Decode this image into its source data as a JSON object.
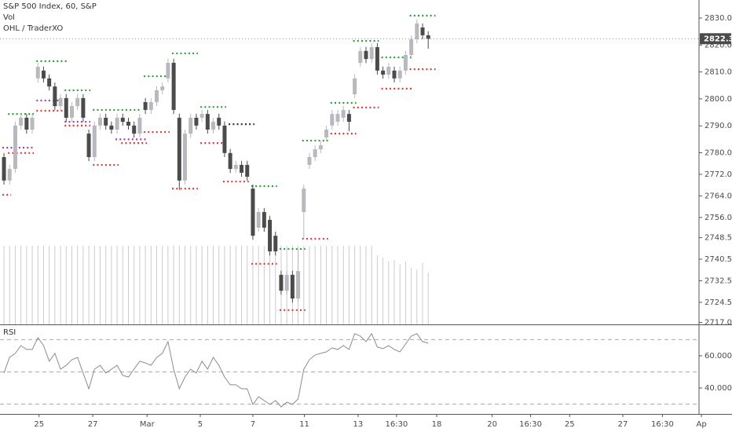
{
  "chart_data": {
    "type": "candlestick",
    "title": "S&P 500 Index, 60, S&P",
    "volume_label": "Vol",
    "indicator_label": "OHL / TraderXO",
    "last_price": 2822.33,
    "up_color": "#b7b9bf",
    "down_color": "#4b4b4b",
    "volume_color": "#c9cbd0",
    "xlim": [
      -0.7,
      128.7
    ],
    "xticks": [
      {
        "value": 6.2,
        "label": "25"
      },
      {
        "value": 15.7,
        "label": "27"
      },
      {
        "value": 25.3,
        "label": "Mar"
      },
      {
        "value": 34.7,
        "label": "5"
      },
      {
        "value": 44.0,
        "label": "7"
      },
      {
        "value": 53.1,
        "label": "11"
      },
      {
        "value": 62.6,
        "label": "13"
      },
      {
        "value": 69.4,
        "label": "16:30"
      },
      {
        "value": 76.5,
        "label": "18"
      },
      {
        "value": 86.3,
        "label": "20"
      },
      {
        "value": 93.1,
        "label": "16:30"
      },
      {
        "value": 100.0,
        "label": "25"
      },
      {
        "value": 109.4,
        "label": "27"
      },
      {
        "value": 116.4,
        "label": "16:30"
      },
      {
        "value": 123.3,
        "label": "Ap"
      }
    ],
    "ylim": [
      2716.3,
      2836.7
    ],
    "yticks": [
      {
        "value": 2717,
        "label": "2717.00"
      },
      {
        "value": 2724.5,
        "label": "2724.50"
      },
      {
        "value": 2732.5,
        "label": "2732.50"
      },
      {
        "value": 2740.5,
        "label": "2740.50"
      },
      {
        "value": 2748.5,
        "label": "2748.50"
      },
      {
        "value": 2756,
        "label": "2756.00"
      },
      {
        "value": 2764,
        "label": "2764.00"
      },
      {
        "value": 2772,
        "label": "2772.00"
      },
      {
        "value": 2780,
        "label": "2780.00"
      },
      {
        "value": 2790,
        "label": "2790.00"
      },
      {
        "value": 2800,
        "label": "2800.00"
      },
      {
        "value": 2810,
        "label": "2810.00"
      },
      {
        "value": 2820,
        "label": "2820.00"
      },
      {
        "value": 2830,
        "label": "2830.00"
      }
    ],
    "open": [
      2778.4,
      2769.7,
      2774.0,
      2790.1,
      2793.0,
      2788.6,
      2807.6,
      2810.5,
      2807.6,
      2804.6,
      2797.3,
      2800.3,
      2793.0,
      2797.3,
      2800.3,
      2787.1,
      2778.4,
      2790.1,
      2793.0,
      2790.1,
      2788.6,
      2793.0,
      2791.5,
      2790.1,
      2787.1,
      2798.8,
      2795.9,
      2798.8,
      2803.2,
      2807.6,
      2813.4,
      2793.0,
      2769.7,
      2787.1,
      2793.0,
      2793.0,
      2794.4,
      2788.6,
      2793.0,
      2790.1,
      2779.9,
      2774.0,
      2775.5,
      2775.5,
      2766.7,
      2752.2,
      2758.0,
      2755.1,
      2749.2,
      2734.7,
      2728.8,
      2734.7,
      2725.9,
      2758.0,
      2775.5,
      2778.4,
      2781.3,
      2785.7,
      2790.1,
      2791.5,
      2793.0,
      2794.4,
      2801.7,
      2813.4,
      2817.8,
      2814.8,
      2819.2,
      2810.5,
      2809.0,
      2810.5,
      2807.6,
      2810.5,
      2816.3,
      2822.1,
      2826.5,
      2823.6
    ],
    "high": [
      2779.9,
      2775.5,
      2791.6,
      2794.5,
      2794.5,
      2794.5,
      2813.4,
      2812.0,
      2809.1,
      2806.1,
      2801.8,
      2801.8,
      2798.8,
      2801.8,
      2801.8,
      2788.6,
      2791.6,
      2794.5,
      2794.5,
      2791.6,
      2794.5,
      2794.5,
      2793.0,
      2791.6,
      2794.5,
      2800.3,
      2800.3,
      2804.7,
      2806.1,
      2814.9,
      2814.9,
      2794.5,
      2788.6,
      2794.5,
      2794.5,
      2795.9,
      2795.9,
      2793.0,
      2794.5,
      2791.6,
      2781.4,
      2777.0,
      2777.0,
      2777.0,
      2768.2,
      2759.5,
      2759.5,
      2756.6,
      2750.7,
      2736.2,
      2736.2,
      2736.2,
      2744.0,
      2768.2,
      2779.9,
      2782.8,
      2784.3,
      2790.1,
      2795.9,
      2795.9,
      2797.4,
      2795.9,
      2809.1,
      2819.3,
      2819.3,
      2820.7,
      2820.7,
      2812.0,
      2813.4,
      2812.0,
      2812.0,
      2817.8,
      2823.6,
      2829.5,
      2828.0,
      2825.1
    ],
    "low": [
      2768.2,
      2768.2,
      2772.5,
      2788.6,
      2787.1,
      2787.1,
      2806.1,
      2806.1,
      2803.1,
      2795.8,
      2795.8,
      2791.5,
      2791.5,
      2795.8,
      2791.5,
      2776.9,
      2776.9,
      2788.6,
      2788.6,
      2787.1,
      2787.1,
      2790.0,
      2788.6,
      2785.6,
      2785.6,
      2794.4,
      2794.4,
      2797.3,
      2801.7,
      2806.1,
      2794.4,
      2766.2,
      2768.2,
      2785.6,
      2788.6,
      2791.5,
      2787.1,
      2787.1,
      2788.6,
      2778.4,
      2772.5,
      2772.5,
      2771.1,
      2769.6,
      2747.7,
      2750.7,
      2750.7,
      2741.9,
      2741.9,
      2727.3,
      2727.3,
      2724.4,
      2724.4,
      2747.7,
      2774.0,
      2776.9,
      2779.8,
      2784.2,
      2788.6,
      2790.0,
      2791.5,
      2788.0,
      2800.2,
      2811.9,
      2813.3,
      2813.3,
      2809.0,
      2807.5,
      2807.5,
      2806.1,
      2806.1,
      2809.0,
      2814.8,
      2820.6,
      2822.1,
      2818.6
    ],
    "close": [
      2769.7,
      2774.0,
      2790.1,
      2793.0,
      2788.6,
      2793.0,
      2811.9,
      2807.6,
      2804.6,
      2797.3,
      2800.3,
      2793.0,
      2797.3,
      2800.3,
      2793.0,
      2778.4,
      2790.1,
      2793.0,
      2790.1,
      2788.6,
      2793.0,
      2791.5,
      2790.1,
      2787.1,
      2793.0,
      2795.9,
      2798.8,
      2803.2,
      2804.6,
      2813.4,
      2795.9,
      2769.7,
      2787.1,
      2793.0,
      2790.1,
      2794.4,
      2788.6,
      2791.5,
      2790.1,
      2779.9,
      2774.0,
      2775.5,
      2772.6,
      2771.1,
      2749.2,
      2758.0,
      2752.2,
      2743.4,
      2743.4,
      2728.8,
      2734.7,
      2725.9,
      2736.1,
      2766.7,
      2778.4,
      2781.3,
      2782.8,
      2788.6,
      2794.4,
      2794.4,
      2795.9,
      2791.5,
      2807.6,
      2817.8,
      2814.8,
      2819.2,
      2810.5,
      2809.0,
      2811.9,
      2807.6,
      2810.5,
      2816.3,
      2822.1,
      2828.0,
      2823.6,
      2822.3
    ],
    "volume": [
      100,
      100,
      100,
      100,
      100,
      100,
      100,
      100,
      100,
      100,
      100,
      100,
      100,
      100,
      100,
      100,
      100,
      100,
      100,
      100,
      100,
      100,
      100,
      100,
      100,
      100,
      100,
      100,
      100,
      100,
      100,
      100,
      100,
      100,
      100,
      100,
      100,
      100,
      100,
      100,
      100,
      100,
      100,
      100,
      100,
      100,
      100,
      100,
      100,
      100,
      100,
      100,
      100,
      100,
      100,
      100,
      100,
      100,
      100,
      100,
      100,
      100,
      100,
      100,
      100,
      100,
      88,
      85,
      80,
      82,
      76,
      80,
      72,
      70,
      78,
      66
    ],
    "levels": [
      {
        "color": "#2f9e3a",
        "segments": [
          [
            1,
            5,
            2794.4
          ],
          [
            6,
            11,
            2814.0
          ],
          [
            11,
            15,
            2803.2
          ],
          [
            16,
            24,
            2795.9
          ],
          [
            25,
            29,
            2808.4
          ],
          [
            30,
            34,
            2816.9
          ],
          [
            35,
            39,
            2797.0
          ],
          [
            44,
            48,
            2767.6
          ],
          [
            49,
            53,
            2744.3
          ],
          [
            53,
            57,
            2784.5
          ],
          [
            58,
            62,
            2798.5
          ],
          [
            62,
            66,
            2821.5
          ],
          [
            67,
            72,
            2815.4
          ],
          [
            72,
            76,
            2830.9
          ]
        ]
      },
      {
        "color": "#2b3a2b",
        "segments": [
          [
            40,
            44,
            2790.6
          ]
        ]
      },
      {
        "color": "#e03a3a",
        "segments": [
          [
            0,
            1,
            2764.4
          ],
          [
            1,
            5,
            2779.9
          ],
          [
            6,
            11,
            2795.6
          ],
          [
            11,
            15,
            2790.1
          ],
          [
            16,
            20,
            2775.5
          ],
          [
            21,
            25,
            2783.6
          ],
          [
            25,
            29,
            2787.7
          ],
          [
            30,
            34,
            2766.7
          ],
          [
            35,
            39,
            2783.6
          ],
          [
            39,
            43,
            2769.3
          ],
          [
            44,
            48,
            2738.8
          ],
          [
            49,
            53,
            2721.6
          ],
          [
            53,
            57,
            2748.1
          ],
          [
            58,
            62,
            2787.1
          ],
          [
            62,
            66,
            2796.8
          ],
          [
            67,
            72,
            2803.8
          ],
          [
            72,
            76,
            2811.0
          ]
        ]
      },
      {
        "color": "#9b3fb5",
        "segments": [
          [
            0,
            5,
            2781.9
          ],
          [
            6,
            10,
            2799.4
          ],
          [
            11,
            15,
            2791.5
          ],
          [
            20,
            25,
            2785.0
          ]
        ]
      }
    ],
    "rsi": {
      "label": "RSI",
      "color": "#8c8c8c",
      "ylim": [
        23.9,
        78.5
      ],
      "yticks": [
        {
          "value": 60,
          "label": "60.0000"
        },
        {
          "value": 40,
          "label": "40.0000"
        }
      ],
      "bands": [
        30,
        50,
        70
      ],
      "values": [
        49.3,
        59.0,
        61.5,
        66.3,
        63.9,
        63.9,
        71.2,
        66.3,
        56.6,
        61.5,
        51.7,
        54.1,
        57.6,
        59.0,
        49.3,
        39.5,
        51.7,
        54.1,
        49.3,
        51.7,
        54.1,
        47.8,
        46.8,
        51.7,
        56.6,
        55.6,
        54.1,
        59.0,
        61.5,
        68.8,
        51.7,
        39.5,
        46.8,
        51.7,
        49.3,
        56.6,
        51.7,
        59.0,
        54.1,
        46.8,
        42.0,
        42.0,
        39.5,
        39.5,
        29.8,
        34.6,
        32.2,
        29.8,
        32.2,
        28.3,
        31.2,
        29.8,
        33.2,
        51.7,
        57.6,
        60.5,
        61.5,
        62.4,
        64.9,
        63.9,
        66.3,
        63.9,
        73.7,
        72.2,
        68.8,
        73.7,
        65.4,
        64.4,
        66.3,
        63.9,
        62.4,
        67.3,
        72.2,
        73.7,
        68.8,
        67.8
      ]
    }
  }
}
